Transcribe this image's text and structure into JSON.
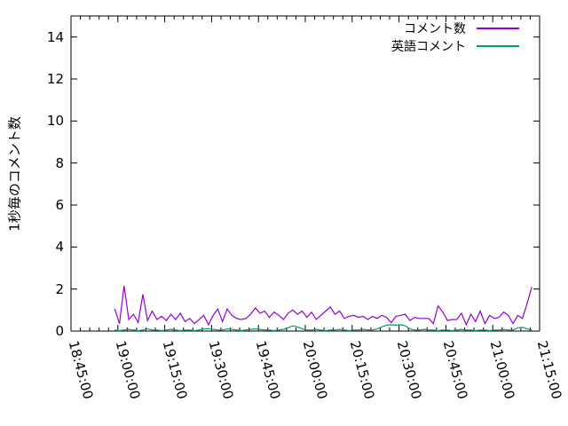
{
  "colors": {
    "background": "#ffffff",
    "axis": "#000000",
    "text": "#000000"
  },
  "chart_data": {
    "type": "line",
    "title": "",
    "xlabel": "",
    "ylabel": "1秒毎のコメント数",
    "ylim": [
      0,
      15
    ],
    "y_ticks": [
      0,
      2,
      4,
      6,
      8,
      10,
      12,
      14
    ],
    "grid": false,
    "legend_position": "top-right-inside",
    "x_axis": {
      "start": "18:45:00",
      "end": "21:15:00",
      "major_tick_minutes": 15,
      "minor_tick_minutes": 3,
      "tick_labels": [
        "18:45:00",
        "19:00:00",
        "19:15:00",
        "19:30:00",
        "19:45:00",
        "20:00:00",
        "20:15:00",
        "20:30:00",
        "20:45:00",
        "21:00:00",
        "21:15:00"
      ]
    },
    "series_start_time": "18:59:00",
    "series_interval_seconds": 90,
    "series": [
      {
        "name": "コメント数",
        "color": "#9400d3",
        "values": [
          1.05,
          0.35,
          2.15,
          0.55,
          0.8,
          0.4,
          1.75,
          0.5,
          0.95,
          0.55,
          0.7,
          0.5,
          0.8,
          0.55,
          0.85,
          0.45,
          0.6,
          0.35,
          0.55,
          0.75,
          0.3,
          0.75,
          1.05,
          0.45,
          1.05,
          0.75,
          0.6,
          0.55,
          0.6,
          0.8,
          1.1,
          0.85,
          0.95,
          0.65,
          0.9,
          0.75,
          0.55,
          0.85,
          1.0,
          0.8,
          0.95,
          0.65,
          0.9,
          0.55,
          0.75,
          0.95,
          1.15,
          0.8,
          0.95,
          0.6,
          0.7,
          0.75,
          0.65,
          0.7,
          0.55,
          0.7,
          0.6,
          0.75,
          0.65,
          0.4,
          0.7,
          0.75,
          0.8,
          0.5,
          0.65,
          0.6,
          0.6,
          0.6,
          0.35,
          1.2,
          0.9,
          0.5,
          0.55,
          0.55,
          0.85,
          0.3,
          0.8,
          0.45,
          0.95,
          0.35,
          0.75,
          0.6,
          0.65,
          0.9,
          0.75,
          0.35,
          0.75,
          0.6,
          1.3,
          2.1
        ]
      },
      {
        "name": "英語コメント",
        "color": "#009e73",
        "values": [
          0.05,
          0.02,
          0.05,
          0.08,
          0.05,
          0.02,
          0.05,
          0.1,
          0.05,
          0.05,
          0.02,
          0.05,
          0.08,
          0.05,
          0.02,
          0.05,
          0.05,
          0.02,
          0.05,
          0.1,
          0.12,
          0.08,
          0.05,
          0.05,
          0.1,
          0.08,
          0.05,
          0.02,
          0.05,
          0.08,
          0.1,
          0.08,
          0.05,
          0.05,
          0.02,
          0.05,
          0.08,
          0.15,
          0.25,
          0.2,
          0.1,
          0.05,
          0.05,
          0.08,
          0.05,
          0.02,
          0.05,
          0.05,
          0.08,
          0.05,
          0.02,
          0.05,
          0.05,
          0.08,
          0.05,
          0.05,
          0.1,
          0.2,
          0.28,
          0.3,
          0.28,
          0.3,
          0.25,
          0.1,
          0.05,
          0.05,
          0.08,
          0.05,
          0.05,
          0.02,
          0.05,
          0.05,
          0.02,
          0.05,
          0.08,
          0.05,
          0.05,
          0.02,
          0.05,
          0.05,
          0.02,
          0.05,
          0.05,
          0.08,
          0.05,
          0.05,
          0.15,
          0.18,
          0.1,
          0.05
        ]
      }
    ]
  }
}
